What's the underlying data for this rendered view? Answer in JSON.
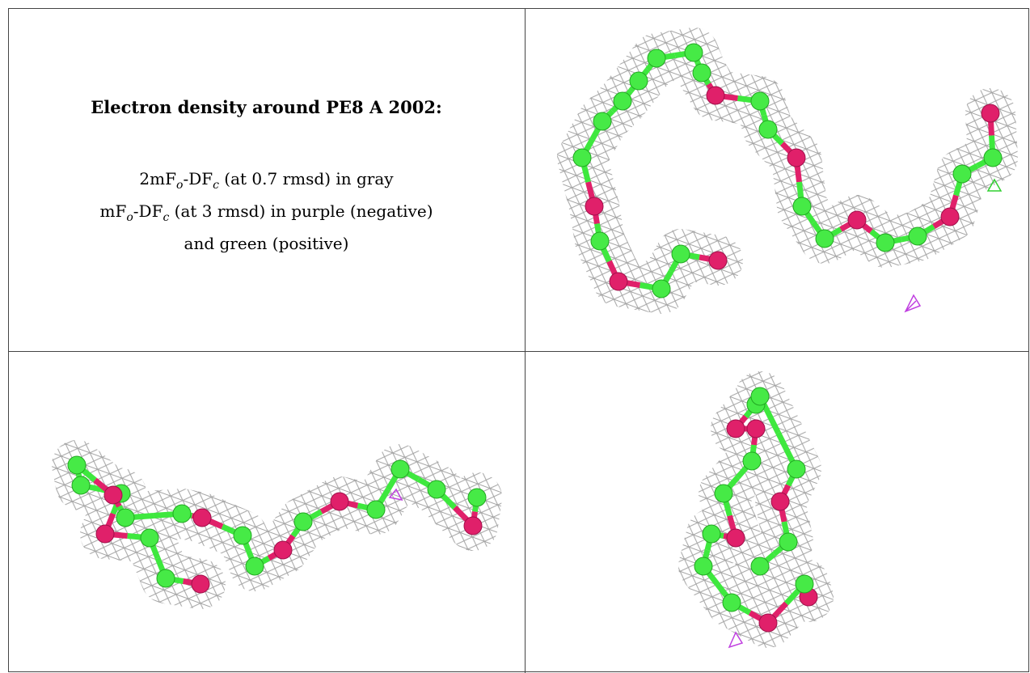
{
  "title": "Electron density around PE8 A 2002:",
  "caption": [
    [
      "2mF",
      "o",
      "-DF",
      "c",
      " (at 0.7 rmsd) in gray"
    ],
    [
      "mF",
      "o",
      "-DF",
      "c",
      " (at 3 rmsd) in purple (negative)"
    ],
    [
      "and green (positive)"
    ]
  ]
}
